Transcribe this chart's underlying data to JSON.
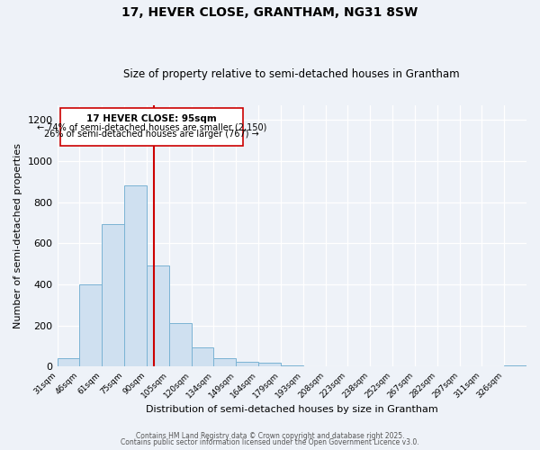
{
  "title1": "17, HEVER CLOSE, GRANTHAM, NG31 8SW",
  "title2": "Size of property relative to semi-detached houses in Grantham",
  "xlabel": "Distribution of semi-detached houses by size in Grantham",
  "ylabel": "Number of semi-detached properties",
  "bin_labels": [
    "31sqm",
    "46sqm",
    "61sqm",
    "75sqm",
    "90sqm",
    "105sqm",
    "120sqm",
    "134sqm",
    "149sqm",
    "164sqm",
    "179sqm",
    "193sqm",
    "208sqm",
    "223sqm",
    "238sqm",
    "252sqm",
    "267sqm",
    "282sqm",
    "297sqm",
    "311sqm",
    "326sqm"
  ],
  "bar_values": [
    40,
    400,
    695,
    880,
    490,
    210,
    95,
    40,
    25,
    20,
    5,
    2,
    2,
    0,
    0,
    0,
    0,
    0,
    0,
    0,
    5
  ],
  "bar_color": "#cfe0f0",
  "bar_edge_color": "#7ab3d4",
  "vline_color": "#cc0000",
  "vline_label": "17 HEVER CLOSE: 95sqm",
  "annotation_smaller": "← 74% of semi-detached houses are smaller (2,150)",
  "annotation_larger": "26% of semi-detached houses are larger (767) →",
  "ylim": [
    0,
    1270
  ],
  "yticks": [
    0,
    200,
    400,
    600,
    800,
    1000,
    1200
  ],
  "footer1": "Contains HM Land Registry data © Crown copyright and database right 2025.",
  "footer2": "Contains public sector information licensed under the Open Government Licence v3.0.",
  "bg_color": "#eef2f8",
  "plot_bg": "#eef2f8"
}
